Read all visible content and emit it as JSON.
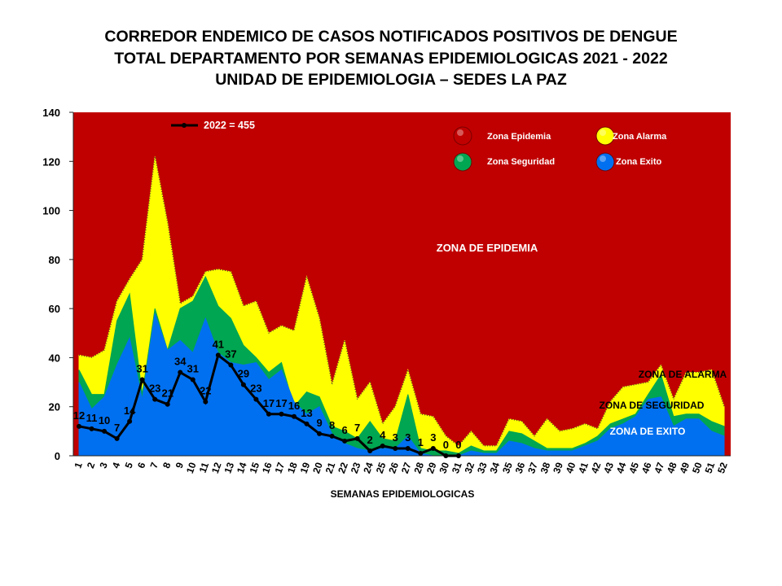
{
  "title_lines": [
    "CORREDOR ENDEMICO DE CASOS NOTIFICADOS POSITIVOS DE DENGUE",
    "TOTAL DEPARTAMENTO POR SEMANAS EPIDEMIOLOGICAS 2021 - 2022",
    "UNIDAD DE EPIDEMIOLOGIA – SEDES LA PAZ"
  ],
  "colors": {
    "epidemia": "#c00000",
    "alarma": "#ffff00",
    "seguridad": "#00a651",
    "exito": "#0070f0",
    "line": "#000000"
  },
  "chart_data": {
    "type": "area",
    "xlabel": "SEMANAS EPIDEMIOLOGICAS",
    "ylabel": "",
    "ylim": [
      0,
      140
    ],
    "y_ticks": [
      0,
      20,
      40,
      60,
      80,
      100,
      120,
      140
    ],
    "x": [
      1,
      2,
      3,
      4,
      5,
      6,
      7,
      8,
      9,
      10,
      11,
      12,
      13,
      14,
      15,
      16,
      17,
      18,
      19,
      20,
      21,
      22,
      23,
      24,
      25,
      26,
      27,
      28,
      29,
      30,
      31,
      32,
      33,
      34,
      35,
      36,
      37,
      38,
      39,
      40,
      41,
      42,
      43,
      44,
      45,
      46,
      47,
      48,
      49,
      50,
      51,
      52
    ],
    "grid": false,
    "legend_position": "top-center",
    "series": [
      {
        "name": "Zona Exito",
        "role": "exito",
        "values": [
          30,
          19,
          24,
          37,
          48,
          23,
          58,
          43,
          47,
          42,
          56,
          42,
          38,
          37,
          38,
          31,
          35,
          22,
          17,
          20,
          9,
          5,
          3,
          2,
          3,
          3,
          8,
          1,
          0,
          0,
          0,
          2,
          1,
          1,
          6,
          5,
          3,
          2,
          2,
          2,
          4,
          6,
          11,
          13,
          16,
          23,
          24,
          12,
          15,
          15,
          10,
          8
        ]
      },
      {
        "name": "Zona Seguridad",
        "role": "seguridad",
        "values": [
          35,
          25,
          25,
          55,
          66,
          25,
          60,
          43,
          60,
          63,
          73,
          61,
          56,
          45,
          40,
          34,
          38,
          20,
          26,
          24,
          12,
          10,
          7,
          14,
          7,
          6,
          25,
          3,
          2,
          2,
          1,
          4,
          2,
          2,
          10,
          9,
          6,
          3,
          3,
          3,
          5,
          8,
          13,
          15,
          17,
          25,
          33,
          16,
          17,
          17,
          14,
          12
        ]
      },
      {
        "name": "Zona Alarma",
        "role": "alarma",
        "values": [
          41,
          40,
          43,
          63,
          72,
          80,
          122,
          95,
          62,
          65,
          75,
          76,
          75,
          61,
          63,
          50,
          53,
          51,
          73,
          56,
          29,
          47,
          23,
          30,
          13,
          20,
          35,
          17,
          16,
          8,
          4,
          10,
          4,
          4,
          15,
          14,
          8,
          15,
          10,
          11,
          13,
          11,
          22,
          28,
          29,
          30,
          37,
          23,
          34,
          34,
          35,
          20
        ]
      },
      {
        "name": "2022 = 455",
        "role": "line",
        "x": [
          1,
          2,
          3,
          4,
          5,
          6,
          7,
          8,
          9,
          10,
          11,
          12,
          13,
          14,
          15,
          16,
          17,
          18,
          19,
          20,
          21,
          22,
          23,
          24,
          25,
          26,
          27,
          28,
          29,
          30,
          31
        ],
        "values": [
          12,
          11,
          10,
          7,
          14,
          31,
          23,
          21,
          34,
          31,
          22,
          41,
          37,
          29,
          23,
          17,
          17,
          16,
          13,
          9,
          8,
          6,
          7,
          2,
          4,
          3,
          3,
          1,
          3,
          0,
          0
        ]
      }
    ],
    "legend": [
      {
        "label": "Zona Epidemia",
        "role": "epidemia"
      },
      {
        "label": "Zona Alarma",
        "role": "alarma"
      },
      {
        "label": "Zona Seguridad",
        "role": "seguridad"
      },
      {
        "label": "Zona Exito",
        "role": "exito"
      }
    ],
    "annotations": [
      {
        "text": "ZONA DE EPIDEMIA",
        "role": "epidemia"
      },
      {
        "text": "ZONA DE ALARMA",
        "role": "alarma"
      },
      {
        "text": "ZONA DE  SEGURIDAD",
        "role": "seguridad"
      },
      {
        "text": "ZONA DE  EXITO",
        "role": "exito"
      }
    ]
  }
}
